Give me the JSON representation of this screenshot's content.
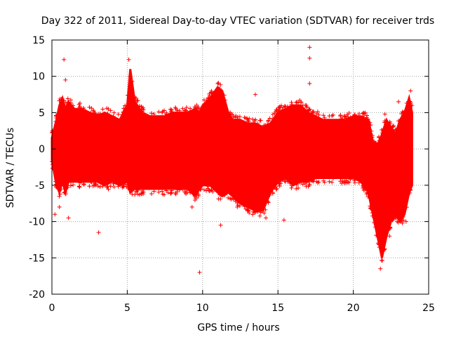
{
  "chart_data": {
    "type": "scatter",
    "title": "Day 322 of 2011, Sidereal Day-to-day VTEC variation (SDTVAR) for receiver trds",
    "xlabel": "GPS time / hours",
    "ylabel": "SDTVAR / TECUs",
    "xlim": [
      0,
      25
    ],
    "ylim": [
      -20,
      15
    ],
    "x_ticks": [
      0,
      5,
      10,
      15,
      20,
      25
    ],
    "y_ticks": [
      -20,
      -15,
      -10,
      -5,
      0,
      5,
      10,
      15
    ],
    "grid": true,
    "marker": "+",
    "series_color": "#ff0000",
    "envelope": {
      "description_units": "x in hours, y in TECU",
      "x": [
        0.0,
        0.3,
        0.5,
        0.7,
        0.9,
        1.1,
        1.5,
        2.0,
        2.5,
        3.0,
        3.5,
        4.0,
        4.5,
        5.0,
        5.2,
        5.5,
        6.0,
        6.5,
        7.0,
        7.5,
        8.0,
        8.5,
        9.0,
        9.5,
        9.8,
        10.0,
        10.5,
        11.0,
        11.3,
        11.7,
        12.0,
        12.5,
        13.0,
        13.5,
        14.0,
        14.5,
        15.0,
        15.5,
        16.0,
        16.5,
        17.0,
        17.5,
        18.0,
        18.5,
        19.0,
        19.5,
        20.0,
        20.5,
        21.0,
        21.3,
        21.6,
        21.9,
        22.2,
        22.5,
        22.8,
        23.1,
        23.4,
        23.7,
        23.9
      ],
      "upper": [
        1.5,
        4.0,
        6.0,
        7.0,
        5.5,
        6.5,
        5.5,
        5.5,
        5.0,
        4.5,
        5.0,
        4.5,
        4.0,
        6.0,
        11.0,
        6.5,
        5.0,
        4.5,
        4.5,
        4.5,
        5.0,
        5.0,
        5.0,
        5.5,
        5.0,
        6.0,
        7.0,
        8.5,
        8.0,
        5.0,
        4.0,
        4.0,
        3.5,
        3.5,
        3.0,
        3.5,
        5.0,
        5.5,
        6.0,
        6.0,
        5.0,
        4.5,
        4.0,
        4.0,
        4.0,
        4.0,
        4.5,
        4.5,
        4.0,
        1.0,
        0.5,
        2.0,
        4.0,
        3.0,
        2.0,
        4.0,
        5.0,
        7.0,
        5.0
      ],
      "lower": [
        -1.5,
        -5.0,
        -6.0,
        -4.5,
        -6.0,
        -4.5,
        -4.5,
        -4.5,
        -4.5,
        -4.5,
        -5.0,
        -4.5,
        -5.0,
        -4.5,
        -6.0,
        -5.5,
        -5.5,
        -5.5,
        -5.5,
        -5.5,
        -5.5,
        -5.5,
        -5.5,
        -6.5,
        -5.5,
        -5.0,
        -5.0,
        -6.0,
        -6.5,
        -6.0,
        -6.5,
        -7.5,
        -8.0,
        -8.5,
        -8.5,
        -6.0,
        -4.5,
        -4.0,
        -5.0,
        -4.5,
        -4.5,
        -4.0,
        -4.0,
        -4.0,
        -4.0,
        -4.0,
        -4.0,
        -4.5,
        -6.0,
        -9.0,
        -12.0,
        -15.0,
        -12.0,
        -10.0,
        -9.0,
        -10.0,
        -9.0,
        -6.0,
        -5.0
      ]
    },
    "outliers": {
      "x": [
        0.2,
        0.5,
        0.6,
        0.8,
        0.9,
        1.1,
        3.1,
        5.1,
        5.2,
        7.7,
        9.3,
        9.8,
        11.0,
        11.2,
        12.0,
        12.3,
        13.5,
        14.2,
        15.4,
        17.1,
        17.1,
        17.1,
        21.8,
        22.1,
        22.4,
        23.0,
        23.5,
        23.8,
        23.9
      ],
      "y": [
        -9.0,
        -8.0,
        -4.5,
        12.3,
        9.5,
        -9.5,
        -11.5,
        12.3,
        10.0,
        -6.0,
        -8.0,
        -17.0,
        9.0,
        -10.5,
        -5.5,
        -8.0,
        7.5,
        -9.5,
        -9.8,
        14.0,
        12.5,
        9.0,
        -16.5,
        4.8,
        -12.0,
        6.5,
        -10.0,
        8.0,
        6.0
      ]
    }
  }
}
